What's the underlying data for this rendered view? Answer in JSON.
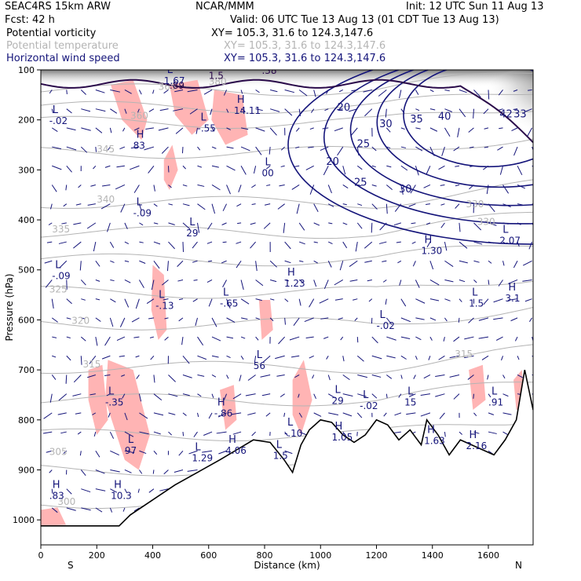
{
  "header": {
    "model": "SEAC4RS 15km ARW",
    "center": "NCAR/MMM",
    "init": "Init: 12 UTC Sun 11 Aug 13",
    "fcst": "Fcst:   42 h",
    "valid": "Valid: 06 UTC Tue 13 Aug 13 (01 CDT Tue 13 Aug 13)",
    "fields": [
      {
        "name": "Potential vorticity",
        "xy": "XY= 105.3, 31.6 to 124.3,147.6",
        "color": "#000000"
      },
      {
        "name": "Potential temperature",
        "xy": "XY= 105.3, 31.6 to 124.3,147.6",
        "color": "#b4b4b4"
      },
      {
        "name": "Horizontal wind speed",
        "xy": "XY= 105.3, 31.6 to 124.3,147.6",
        "color": "#14147a"
      }
    ]
  },
  "chart_data": {
    "type": "contour",
    "xlabel": "Distance (km)",
    "ylabel": "Pressure (hPa)",
    "xlim": [
      0,
      1760
    ],
    "ylim": [
      100,
      1050
    ],
    "xticks": [
      0,
      200,
      400,
      600,
      800,
      1000,
      1200,
      1400,
      1600
    ],
    "yticks": [
      100,
      200,
      300,
      400,
      500,
      600,
      700,
      800,
      900,
      1000
    ],
    "x_end_labels": {
      "left": "S",
      "right": "N"
    },
    "colors": {
      "theta": "#b4b4b4",
      "wind": "#14147a",
      "pv": "#2a0a4a",
      "pv_shade": "#ffb4b4",
      "terrain": "#000000"
    },
    "terrain": {
      "x": [
        0,
        100,
        200,
        280,
        320,
        400,
        480,
        560,
        640,
        700,
        760,
        820,
        870,
        900,
        930,
        960,
        1000,
        1040,
        1080,
        1120,
        1160,
        1200,
        1240,
        1280,
        1320,
        1360,
        1380,
        1420,
        1460,
        1500,
        1540,
        1580,
        1620,
        1660,
        1700,
        1730,
        1760
      ],
      "p": [
        1012,
        1012,
        1012,
        1012,
        990,
        960,
        930,
        905,
        880,
        860,
        840,
        845,
        880,
        905,
        850,
        820,
        800,
        805,
        830,
        845,
        830,
        800,
        810,
        840,
        820,
        850,
        800,
        830,
        870,
        840,
        850,
        860,
        870,
        840,
        800,
        700,
        780
      ]
    },
    "theta_labels": [
      {
        "text": "380",
        "x": 600,
        "p": 130
      },
      {
        "text": "365",
        "x": 420,
        "p": 140
      },
      {
        "text": "360",
        "x": 320,
        "p": 198
      },
      {
        "text": "345",
        "x": 200,
        "p": 265
      },
      {
        "text": "340",
        "x": 200,
        "p": 365
      },
      {
        "text": "335",
        "x": 40,
        "p": 425
      },
      {
        "text": "325",
        "x": 30,
        "p": 545
      },
      {
        "text": "320",
        "x": 110,
        "p": 608
      },
      {
        "text": "315",
        "x": 150,
        "p": 695
      },
      {
        "text": "305",
        "x": 30,
        "p": 870
      },
      {
        "text": "300",
        "x": 60,
        "p": 970
      },
      {
        "text": "330",
        "x": 1560,
        "p": 410
      },
      {
        "text": "330",
        "x": 1520,
        "p": 375
      },
      {
        "text": "315",
        "x": 1480,
        "p": 675
      }
    ],
    "wind_speed_labels": [
      {
        "text": "20",
        "x": 1060,
        "p": 182
      },
      {
        "text": "20",
        "x": 1020,
        "p": 290
      },
      {
        "text": "25",
        "x": 1130,
        "p": 255
      },
      {
        "text": "25",
        "x": 1120,
        "p": 332
      },
      {
        "text": "30",
        "x": 1210,
        "p": 215
      },
      {
        "text": "30",
        "x": 1280,
        "p": 345
      },
      {
        "text": "35",
        "x": 1320,
        "p": 205
      },
      {
        "text": "40",
        "x": 1420,
        "p": 200
      },
      {
        "text": "42",
        "x": 1640,
        "p": 195
      },
      {
        "text": "33",
        "x": 1690,
        "p": 195
      }
    ],
    "extrema": [
      {
        "kind": "L",
        "value": "-.02",
        "x": 30,
        "p": 205
      },
      {
        "kind": "H",
        "value": "83",
        "x": 330,
        "p": 255
      },
      {
        "kind": "L",
        "value": "1.67",
        "x": 440,
        "p": 125
      },
      {
        "kind": "H",
        "value": "14.11",
        "x": 690,
        "p": 185
      },
      {
        "kind": "L",
        "value": "-.55",
        "x": 560,
        "p": 220
      },
      {
        "kind": "L",
        "value": "00",
        "x": 790,
        "p": 310
      },
      {
        "kind": "L",
        "value": "-.09",
        "x": 330,
        "p": 390
      },
      {
        "kind": "L",
        "value": "29",
        "x": 520,
        "p": 430
      },
      {
        "kind": "L",
        "value": "-.09",
        "x": 40,
        "p": 515
      },
      {
        "kind": "H",
        "value": "1.23",
        "x": 870,
        "p": 530
      },
      {
        "kind": "L",
        "value": "-.13",
        "x": 410,
        "p": 575
      },
      {
        "kind": "L",
        "value": "-.65",
        "x": 640,
        "p": 570
      },
      {
        "kind": "L",
        "value": "56",
        "x": 760,
        "p": 695
      },
      {
        "kind": "L",
        "value": "-.02",
        "x": 1200,
        "p": 615
      },
      {
        "kind": "H",
        "value": "1.30",
        "x": 1360,
        "p": 465
      },
      {
        "kind": "L",
        "value": "2.07",
        "x": 1640,
        "p": 445
      },
      {
        "kind": "L",
        "value": "-.35",
        "x": 230,
        "p": 768
      },
      {
        "kind": "L",
        "value": "29",
        "x": 1040,
        "p": 765
      },
      {
        "kind": "L",
        "value": "-.02",
        "x": 1140,
        "p": 775
      },
      {
        "kind": "L",
        "value": "15",
        "x": 1300,
        "p": 768
      },
      {
        "kind": "L",
        "value": ".91",
        "x": 1600,
        "p": 768
      },
      {
        "kind": "H",
        "value": "-.86",
        "x": 620,
        "p": 790
      },
      {
        "kind": "L",
        "value": "97",
        "x": 300,
        "p": 865
      },
      {
        "kind": "L",
        "value": "-.10",
        "x": 870,
        "p": 830
      },
      {
        "kind": "H",
        "value": "1.05",
        "x": 1040,
        "p": 838
      },
      {
        "kind": "H",
        "value": "1.63",
        "x": 1370,
        "p": 845
      },
      {
        "kind": "H",
        "value": "2.16",
        "x": 1520,
        "p": 855
      },
      {
        "kind": "H",
        "value": "4.06",
        "x": 660,
        "p": 865
      },
      {
        "kind": "L",
        "value": "1.29",
        "x": 540,
        "p": 880
      },
      {
        "kind": "L",
        "value": "1.5",
        "x": 830,
        "p": 875
      },
      {
        "kind": "H",
        "value": ".83",
        "x": 30,
        "p": 955
      },
      {
        "kind": "H",
        "value": "10.3",
        "x": 250,
        "p": 955
      },
      {
        "kind": "H",
        "value": "3.1",
        "x": 1660,
        "p": 560
      },
      {
        "kind": "L",
        "value": "1.5",
        "x": 1530,
        "p": 570
      }
    ],
    "pv_contour_labels": [
      {
        "text": "1.5",
        "x": 600,
        "p": 118
      },
      {
        "text": ".38",
        "x": 790,
        "p": 108
      },
      {
        "text": ".89",
        "x": 460,
        "p": 138
      }
    ]
  }
}
